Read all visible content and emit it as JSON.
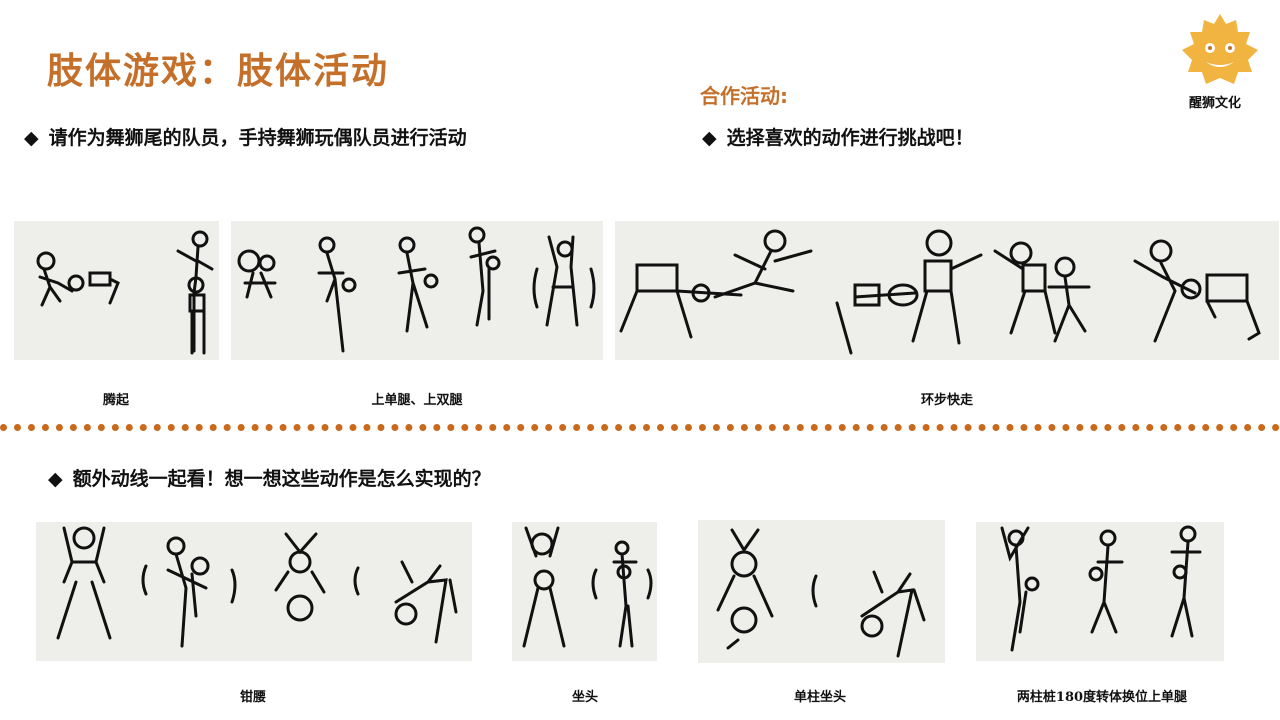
{
  "title": "肢体游戏：肢体活动",
  "coop_label": "合作活动:",
  "bullet_marker": "◆",
  "bullets": {
    "left": "请作为舞狮尾的队员，手持舞狮玩偶队员进行活动",
    "right": "选择喜欢的动作进行挑战吧！",
    "bottom": "额外动线一起看！想一想这些动作是怎么实现的？"
  },
  "logo_text": "醒狮文化",
  "captions": {
    "teng_qi": "腾起",
    "shang_tui": "上单腿、上双腿",
    "huan_bu": "环步快走",
    "qian_yao": "钳腰",
    "zuo_tou": "坐头",
    "dan_zhu": "单柱坐头",
    "liang_zhu": "两柱桩180度转体换位上单腿"
  },
  "colors": {
    "accent": "#c5702a",
    "divider": "#c8691c",
    "panel_bg": "#eeeeea",
    "ink": "#111111",
    "logo": "#f2b441"
  }
}
